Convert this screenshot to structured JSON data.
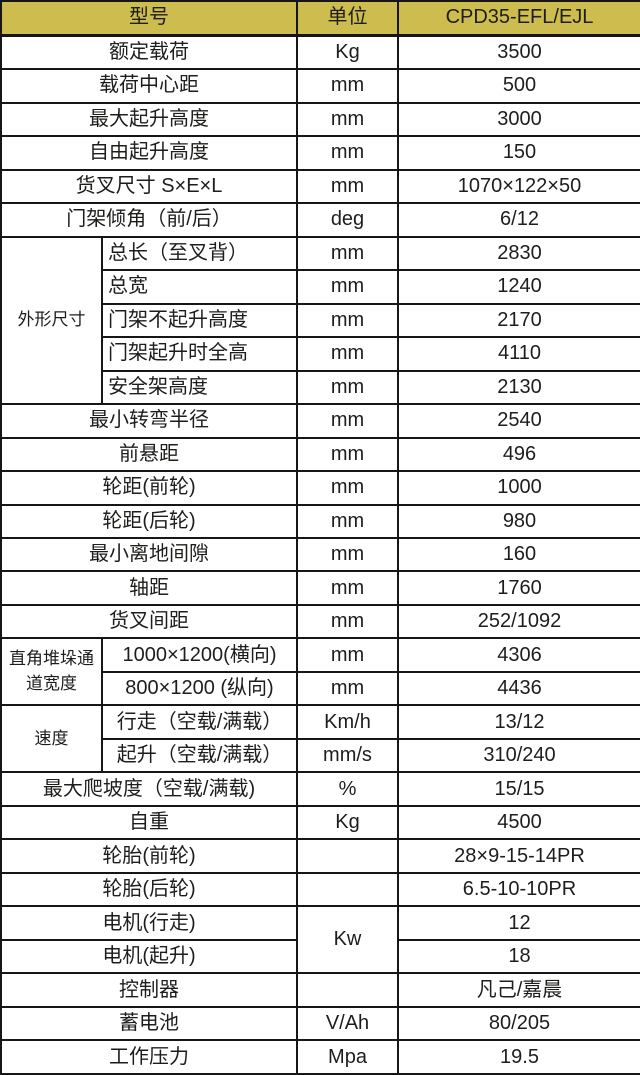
{
  "colors": {
    "header_bg": "#cdbd4f",
    "border": "#161616",
    "text": "#1d1d1b",
    "body_bg": "#ffffff"
  },
  "table": {
    "rows": [
      {
        "header": true,
        "cells": [
          {
            "type": "model-label",
            "text": "型号",
            "colspan": 2
          },
          {
            "type": "unit-header",
            "text": "单位"
          },
          {
            "type": "model-value",
            "text": "CPD35-EFL/EJL"
          }
        ]
      },
      {
        "cells": [
          {
            "type": "label",
            "text": "额定载荷",
            "colspan": 2
          },
          {
            "type": "unit",
            "text": "Kg"
          },
          {
            "type": "value",
            "text": "3500"
          }
        ]
      },
      {
        "cells": [
          {
            "type": "label",
            "text": "载荷中心距",
            "colspan": 2
          },
          {
            "type": "unit",
            "text": "mm"
          },
          {
            "type": "value",
            "text": "500"
          }
        ]
      },
      {
        "cells": [
          {
            "type": "label",
            "text": "最大起升高度",
            "colspan": 2
          },
          {
            "type": "unit",
            "text": "mm"
          },
          {
            "type": "value",
            "text": "3000"
          }
        ]
      },
      {
        "cells": [
          {
            "type": "label",
            "text": "自由起升高度",
            "colspan": 2
          },
          {
            "type": "unit",
            "text": "mm"
          },
          {
            "type": "value",
            "text": "150"
          }
        ]
      },
      {
        "cells": [
          {
            "type": "label",
            "text": "货叉尺寸 S×E×L",
            "colspan": 2
          },
          {
            "type": "unit",
            "text": "mm"
          },
          {
            "type": "value",
            "text": "1070×122×50"
          }
        ]
      },
      {
        "cells": [
          {
            "type": "label",
            "text": "门架倾角（前/后）",
            "colspan": 2
          },
          {
            "type": "unit",
            "text": "deg"
          },
          {
            "type": "value",
            "text": "6/12"
          }
        ]
      },
      {
        "cells": [
          {
            "type": "group",
            "text": "外形尺寸",
            "rowspan": 5
          },
          {
            "type": "sublabel",
            "text": "总长（至叉背）",
            "align": "left"
          },
          {
            "type": "unit",
            "text": "mm"
          },
          {
            "type": "value",
            "text": "2830"
          }
        ]
      },
      {
        "cells": [
          {
            "type": "sublabel",
            "text": "总宽",
            "align": "left"
          },
          {
            "type": "unit",
            "text": "mm"
          },
          {
            "type": "value",
            "text": "1240"
          }
        ]
      },
      {
        "cells": [
          {
            "type": "sublabel",
            "text": "门架不起升高度",
            "align": "left"
          },
          {
            "type": "unit",
            "text": "mm"
          },
          {
            "type": "value",
            "text": "2170"
          }
        ]
      },
      {
        "cells": [
          {
            "type": "sublabel",
            "text": "门架起升时全高",
            "align": "left"
          },
          {
            "type": "unit",
            "text": "mm"
          },
          {
            "type": "value",
            "text": "4110"
          }
        ]
      },
      {
        "cells": [
          {
            "type": "sublabel",
            "text": "安全架高度",
            "align": "left"
          },
          {
            "type": "unit",
            "text": "mm"
          },
          {
            "type": "value",
            "text": "2130"
          }
        ]
      },
      {
        "cells": [
          {
            "type": "label",
            "text": "最小转弯半径",
            "colspan": 2
          },
          {
            "type": "unit",
            "text": "mm"
          },
          {
            "type": "value",
            "text": "2540"
          }
        ]
      },
      {
        "cells": [
          {
            "type": "label",
            "text": "前悬距",
            "colspan": 2
          },
          {
            "type": "unit",
            "text": "mm"
          },
          {
            "type": "value",
            "text": "496"
          }
        ]
      },
      {
        "cells": [
          {
            "type": "label",
            "text": "轮距(前轮)",
            "colspan": 2
          },
          {
            "type": "unit",
            "text": "mm"
          },
          {
            "type": "value",
            "text": "1000"
          }
        ]
      },
      {
        "cells": [
          {
            "type": "label",
            "text": "轮距(后轮)",
            "colspan": 2
          },
          {
            "type": "unit",
            "text": "mm"
          },
          {
            "type": "value",
            "text": "980"
          }
        ]
      },
      {
        "cells": [
          {
            "type": "label",
            "text": "最小离地间隙",
            "colspan": 2
          },
          {
            "type": "unit",
            "text": "mm"
          },
          {
            "type": "value",
            "text": "160"
          }
        ]
      },
      {
        "cells": [
          {
            "type": "label",
            "text": "轴距",
            "colspan": 2
          },
          {
            "type": "unit",
            "text": "mm"
          },
          {
            "type": "value",
            "text": "1760"
          }
        ]
      },
      {
        "cells": [
          {
            "type": "label",
            "text": "货叉间距",
            "colspan": 2
          },
          {
            "type": "unit",
            "text": "mm"
          },
          {
            "type": "value",
            "text": "252/1092"
          }
        ]
      },
      {
        "cells": [
          {
            "type": "group",
            "text": "直角堆垛通道宽度",
            "rowspan": 2
          },
          {
            "type": "sublabel",
            "text": "1000×1200(横向)"
          },
          {
            "type": "unit",
            "text": "mm"
          },
          {
            "type": "value",
            "text": "4306"
          }
        ]
      },
      {
        "cells": [
          {
            "type": "sublabel",
            "text": "800×1200 (纵向)"
          },
          {
            "type": "unit",
            "text": "mm"
          },
          {
            "type": "value",
            "text": "4436"
          }
        ]
      },
      {
        "cells": [
          {
            "type": "group",
            "text": "速度",
            "rowspan": 2
          },
          {
            "type": "sublabel",
            "text": "行走（空载/满载）"
          },
          {
            "type": "unit",
            "text": "Km/h"
          },
          {
            "type": "value",
            "text": "13/12"
          }
        ]
      },
      {
        "cells": [
          {
            "type": "sublabel",
            "text": "起升（空载/满载）"
          },
          {
            "type": "unit",
            "text": "mm/s"
          },
          {
            "type": "value",
            "text": "310/240"
          }
        ]
      },
      {
        "cells": [
          {
            "type": "label",
            "text": "最大爬坡度（空载/满载)",
            "colspan": 2
          },
          {
            "type": "unit",
            "text": "%"
          },
          {
            "type": "value",
            "text": "15/15"
          }
        ]
      },
      {
        "cells": [
          {
            "type": "label",
            "text": "自重",
            "colspan": 2
          },
          {
            "type": "unit",
            "text": "Kg"
          },
          {
            "type": "value",
            "text": "4500"
          }
        ]
      },
      {
        "cells": [
          {
            "type": "label",
            "text": "轮胎(前轮)",
            "colspan": 2
          },
          {
            "type": "unit",
            "text": ""
          },
          {
            "type": "value",
            "text": "28×9-15-14PR"
          }
        ]
      },
      {
        "cells": [
          {
            "type": "label",
            "text": "轮胎(后轮)",
            "colspan": 2
          },
          {
            "type": "unit",
            "text": ""
          },
          {
            "type": "value",
            "text": "6.5-10-10PR"
          }
        ]
      },
      {
        "cells": [
          {
            "type": "label",
            "text": "电机(行走)",
            "colspan": 2
          },
          {
            "type": "unit",
            "text": "Kw",
            "rowspan": 2
          },
          {
            "type": "value",
            "text": "12"
          }
        ]
      },
      {
        "cells": [
          {
            "type": "label",
            "text": "电机(起升)",
            "colspan": 2
          },
          {
            "type": "value",
            "text": "18"
          }
        ]
      },
      {
        "cells": [
          {
            "type": "label",
            "text": "控制器",
            "colspan": 2
          },
          {
            "type": "unit",
            "text": ""
          },
          {
            "type": "value",
            "text": "凡己/嘉晨"
          }
        ]
      },
      {
        "cells": [
          {
            "type": "label",
            "text": "蓄电池",
            "colspan": 2
          },
          {
            "type": "unit",
            "text": "V/Ah"
          },
          {
            "type": "value",
            "text": "80/205"
          }
        ]
      },
      {
        "cells": [
          {
            "type": "label",
            "text": "工作压力",
            "colspan": 2
          },
          {
            "type": "unit",
            "text": "Mpa"
          },
          {
            "type": "value",
            "text": "19.5"
          }
        ]
      }
    ]
  }
}
